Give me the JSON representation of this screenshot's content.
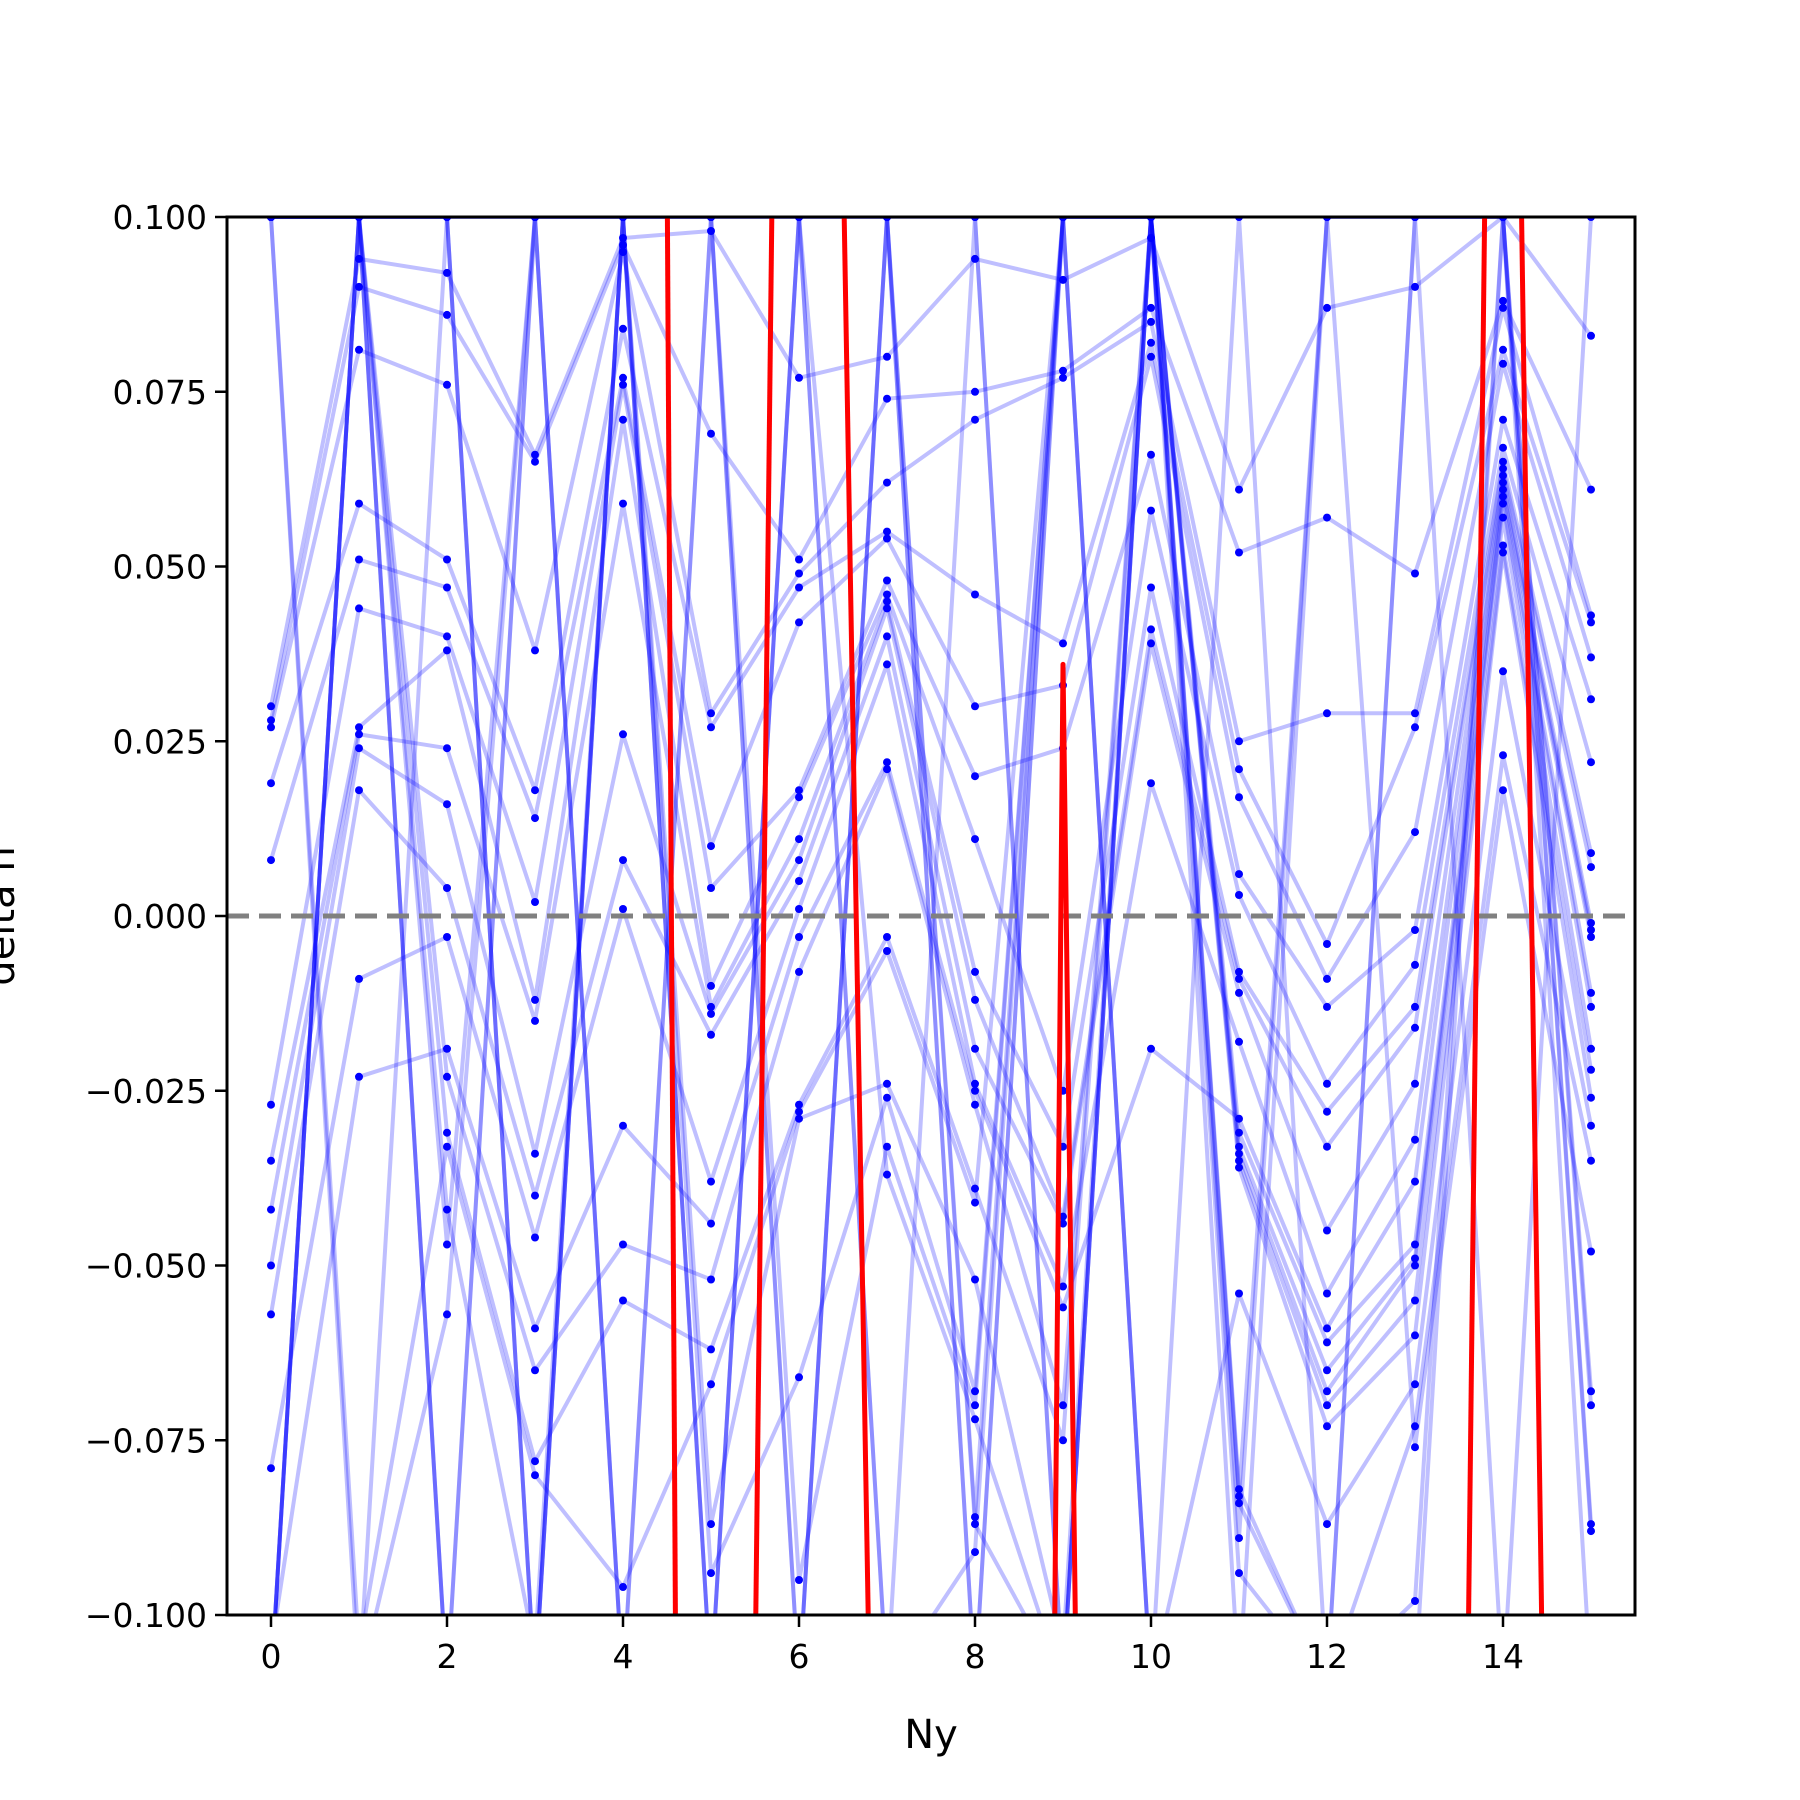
{
  "chart_data": {
    "type": "line",
    "title": "",
    "xlabel": "Ny",
    "ylabel": "delta n",
    "xlim": [
      -0.5,
      15.5
    ],
    "ylim": [
      -0.1,
      0.1
    ],
    "grid": false,
    "x_ticks": [
      0,
      2,
      4,
      6,
      8,
      10,
      12,
      14
    ],
    "y_ticks": [
      0.1,
      0.075,
      0.05,
      0.025,
      0.0,
      -0.025,
      -0.05,
      -0.075,
      -0.1
    ],
    "x_tick_labels": [
      "0",
      "2",
      "4",
      "6",
      "8",
      "10",
      "12",
      "14"
    ],
    "y_tick_labels": [
      "0.100",
      "0.075",
      "0.050",
      "0.025",
      "0.000",
      "−0.025",
      "−0.050",
      "−0.075",
      "−0.100"
    ],
    "reference_line": {
      "y": 0.0,
      "style": "dashed",
      "color": "#808080"
    },
    "colors": {
      "trajectories": "#0000ff",
      "highlight": "#ff0000"
    },
    "trajectories_x": [
      0,
      1,
      2,
      3,
      4,
      5,
      6,
      7,
      8,
      9,
      10,
      11,
      12,
      13,
      14,
      15
    ],
    "trajectories": [
      [
        0.03,
        0.094,
        0.092,
        0.066,
        0.097,
        0.098,
        0.077,
        0.08,
        0.094,
        0.091,
        0.097,
        0.061,
        0.087,
        0.09,
        0.1,
        0.083
      ],
      [
        0.028,
        0.09,
        0.086,
        0.065,
        0.096,
        0.069,
        0.051,
        0.074,
        0.075,
        0.078,
        0.087,
        0.052,
        0.057,
        0.049,
        0.088,
        0.061
      ],
      [
        0.027,
        0.081,
        0.076,
        0.038,
        0.095,
        0.029,
        0.049,
        0.062,
        0.071,
        0.077,
        0.085,
        0.025,
        0.029,
        0.029,
        0.087,
        0.043
      ],
      [
        0.019,
        0.059,
        0.051,
        0.018,
        0.084,
        0.027,
        0.047,
        0.055,
        0.046,
        0.039,
        0.082,
        0.021,
        -0.004,
        0.027,
        0.081,
        0.042
      ],
      [
        0.008,
        0.051,
        0.047,
        0.014,
        0.077,
        0.01,
        0.042,
        0.054,
        0.03,
        0.033,
        0.08,
        0.017,
        -0.009,
        0.012,
        0.079,
        0.037
      ],
      [
        -0.027,
        0.044,
        0.04,
        0.002,
        0.076,
        0.004,
        0.018,
        0.048,
        0.02,
        0.024,
        0.066,
        0.006,
        -0.013,
        -0.002,
        0.071,
        0.031
      ],
      [
        -0.035,
        0.027,
        0.038,
        -0.012,
        0.071,
        -0.01,
        0.017,
        0.046,
        0.011,
        -0.025,
        0.058,
        0.003,
        -0.024,
        -0.007,
        0.067,
        0.022
      ],
      [
        -0.042,
        0.026,
        0.024,
        -0.015,
        0.059,
        -0.013,
        0.011,
        0.045,
        -0.008,
        -0.033,
        0.047,
        -0.008,
        -0.028,
        -0.013,
        0.065,
        0.009
      ],
      [
        -0.05,
        0.024,
        0.016,
        -0.034,
        0.026,
        -0.014,
        0.008,
        0.044,
        -0.012,
        -0.043,
        0.041,
        -0.009,
        -0.033,
        -0.016,
        0.064,
        0.007
      ],
      [
        -0.057,
        0.018,
        0.004,
        -0.04,
        0.008,
        -0.017,
        0.005,
        0.04,
        -0.019,
        -0.044,
        0.039,
        -0.011,
        -0.045,
        -0.024,
        0.063,
        -0.001
      ],
      [
        -0.079,
        -0.009,
        -0.003,
        -0.046,
        0.001,
        -0.038,
        0.001,
        0.036,
        -0.024,
        -0.053,
        0.019,
        -0.018,
        -0.054,
        -0.032,
        0.062,
        -0.002
      ],
      [
        -0.105,
        -0.023,
        -0.019,
        -0.059,
        -0.03,
        -0.044,
        -0.003,
        0.022,
        -0.025,
        -0.056,
        -0.019,
        -0.029,
        -0.059,
        -0.038,
        0.061,
        -0.003
      ],
      [
        -0.11,
        0.1,
        -0.023,
        -0.065,
        -0.047,
        -0.052,
        -0.008,
        0.021,
        -0.027,
        -0.07,
        0.1,
        -0.031,
        -0.061,
        -0.047,
        0.06,
        -0.011
      ],
      [
        0.1,
        0.1,
        -0.031,
        -0.078,
        -0.055,
        -0.062,
        -0.027,
        -0.003,
        -0.039,
        -0.075,
        0.1,
        -0.033,
        -0.065,
        -0.049,
        0.059,
        -0.013
      ],
      [
        0.1,
        -0.105,
        -0.033,
        -0.08,
        -0.096,
        -0.067,
        -0.028,
        -0.005,
        -0.041,
        0.1,
        0.1,
        -0.034,
        -0.068,
        -0.05,
        0.057,
        -0.019
      ],
      [
        0.1,
        0.1,
        -0.042,
        -0.105,
        0.1,
        -0.087,
        -0.029,
        -0.024,
        -0.052,
        -0.105,
        0.1,
        -0.035,
        -0.07,
        -0.055,
        0.053,
        -0.022
      ],
      [
        -0.11,
        0.1,
        -0.047,
        0.1,
        0.1,
        -0.094,
        -0.066,
        -0.026,
        -0.068,
        0.1,
        0.1,
        -0.036,
        -0.073,
        -0.06,
        0.052,
        -0.026
      ],
      [
        0.1,
        -0.11,
        -0.057,
        0.1,
        -0.11,
        0.1,
        -0.095,
        -0.033,
        -0.07,
        0.1,
        -0.11,
        -0.054,
        -0.087,
        -0.067,
        0.035,
        -0.03
      ],
      [
        0.1,
        0.1,
        0.1,
        -0.11,
        0.1,
        -0.11,
        0.1,
        -0.037,
        -0.072,
        -0.11,
        0.1,
        -0.082,
        -0.11,
        -0.073,
        0.023,
        -0.035
      ],
      [
        -0.11,
        0.1,
        0.1,
        0.1,
        0.1,
        0.1,
        -0.11,
        0.1,
        -0.086,
        0.1,
        0.1,
        -0.083,
        0.1,
        -0.076,
        0.018,
        -0.048
      ],
      [
        0.1,
        0.1,
        -0.11,
        0.1,
        -0.11,
        -0.11,
        0.1,
        0.1,
        -0.087,
        -0.11,
        0.1,
        -0.084,
        -0.11,
        -0.098,
        0.1,
        -0.068
      ],
      [
        -0.11,
        0.1,
        0.1,
        -0.11,
        0.1,
        0.1,
        0.1,
        -0.11,
        -0.091,
        0.1,
        0.1,
        -0.089,
        0.1,
        0.1,
        0.1,
        -0.07
      ],
      [
        0.1,
        0.1,
        0.1,
        -0.11,
        0.1,
        -0.11,
        -0.11,
        0.1,
        0.1,
        -0.11,
        0.1,
        -0.094,
        -0.11,
        -0.11,
        0.1,
        -0.087
      ],
      [
        -0.11,
        -0.11,
        0.1,
        0.1,
        0.1,
        0.1,
        0.1,
        0.1,
        -0.11,
        0.1,
        -0.11,
        -0.11,
        0.1,
        0.1,
        0.1,
        -0.088
      ],
      [
        0.1,
        0.1,
        -0.11,
        -0.11,
        0.1,
        -0.11,
        0.1,
        -0.11,
        0.1,
        -0.11,
        0.1,
        -0.11,
        -0.11,
        0.1,
        0.1,
        -0.11
      ],
      [
        -0.11,
        0.1,
        -0.11,
        0.1,
        -0.11,
        0.1,
        -0.11,
        0.1,
        -0.11,
        0.1,
        -0.11,
        0.1,
        -0.11,
        0.1,
        -0.11,
        0.1
      ]
    ],
    "highlight_segments": [
      {
        "x": [
          4.5,
          4.6
        ],
        "y": [
          0.11,
          -0.11
        ]
      },
      {
        "x": [
          5.5,
          5.7
        ],
        "y": [
          -0.11,
          0.11
        ]
      },
      {
        "x": [
          6.5,
          6.8
        ],
        "y": [
          0.11,
          -0.11
        ]
      },
      {
        "x": [
          8.9,
          9.0,
          9.15
        ],
        "y": [
          -0.11,
          0.036,
          -0.11
        ]
      },
      {
        "x": [
          13.6,
          13.8
        ],
        "y": [
          -0.11,
          0.11
        ]
      },
      {
        "x": [
          14.2,
          14.45
        ],
        "y": [
          0.11,
          -0.11
        ]
      }
    ]
  }
}
